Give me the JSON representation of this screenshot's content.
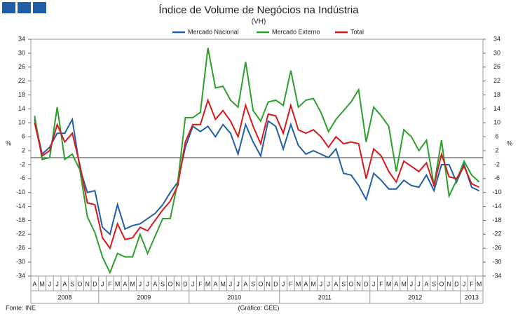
{
  "chart_data": {
    "type": "line",
    "title": "Índice de Volume de Negócios na Indústria",
    "subtitle": "(VH)",
    "ylabel": "%",
    "y2label": "%",
    "source": "Fonte: INE",
    "credit": "(Gráfico: GEE)",
    "categories": [
      "A",
      "M",
      "J",
      "J",
      "A",
      "S",
      "O",
      "N",
      "D",
      "J",
      "F",
      "M",
      "A",
      "M",
      "J",
      "J",
      "A",
      "S",
      "O",
      "N",
      "D",
      "J",
      "F",
      "M",
      "A",
      "M",
      "J",
      "J",
      "A",
      "S",
      "O",
      "N",
      "D",
      "J",
      "F",
      "M",
      "A",
      "M",
      "J",
      "J",
      "A",
      "S",
      "O",
      "N",
      "D",
      "J",
      "F",
      "M",
      "A",
      "M",
      "J",
      "J",
      "A",
      "S",
      "O",
      "N",
      "D",
      "J",
      "F",
      "M"
    ],
    "years": [
      "2008",
      "2009",
      "2010",
      "2011",
      "2012",
      "2013"
    ],
    "ylim": [
      -34,
      34
    ],
    "yticks": [
      -34,
      -30,
      -26,
      -22,
      -18,
      -14,
      -10,
      -6,
      -2,
      2,
      6,
      10,
      14,
      18,
      22,
      26,
      30,
      34
    ],
    "y2lim": [
      -34,
      34
    ],
    "y2ticks": [
      -34,
      -30,
      -26,
      -22,
      -18,
      -14,
      -10,
      -6,
      -2,
      2,
      6,
      10,
      14,
      18,
      22,
      26,
      30,
      34
    ],
    "grid": false,
    "legend": "top",
    "series": [
      {
        "name": "Mercado Nacional",
        "color": "#1f5fa8",
        "values": [
          11,
          1,
          3,
          7,
          7,
          11,
          -3,
          -10,
          -9.5,
          -20,
          -22,
          -13.5,
          -20.5,
          -19.5,
          -19,
          -17.5,
          -16,
          -13.5,
          -10,
          -7,
          3,
          9,
          7.5,
          9,
          6,
          9.5,
          7,
          1,
          9.5,
          4.5,
          0.5,
          10.5,
          9,
          2.5,
          9.5,
          3.5,
          1,
          2,
          1,
          0,
          2.5,
          -4.5,
          -5,
          -8,
          -12,
          -4.5,
          -6.5,
          -9,
          -9,
          -6.5,
          -8,
          -8.5,
          -5,
          -9.5,
          -2,
          -2,
          -7,
          -2,
          -8.5,
          -9.5
        ]
      },
      {
        "name": "Mercado Externo",
        "color": "#2ca02c",
        "values": [
          12,
          -0.5,
          0,
          14.5,
          -0.5,
          1,
          -3.5,
          -17,
          -21.5,
          -28.5,
          -33,
          -27.5,
          -28.5,
          -28.5,
          -22,
          -27.5,
          -22.5,
          -17.5,
          -17.5,
          -7,
          11.5,
          11.5,
          13,
          31.5,
          20,
          20.5,
          16.5,
          14.5,
          27.5,
          13.5,
          10.5,
          16,
          16.5,
          15,
          25,
          14.5,
          16.5,
          17,
          13,
          7.5,
          11,
          13.5,
          16,
          19.5,
          4.5,
          14.5,
          12,
          9,
          -4,
          8,
          6,
          2,
          5,
          -8,
          5,
          -11,
          -6.5,
          -1,
          -5,
          -7
        ]
      },
      {
        "name": "Total",
        "color": "#d7191c",
        "values": [
          10,
          0.5,
          2,
          9.5,
          4.5,
          7,
          -2,
          -13,
          -13.5,
          -23,
          -26,
          -19,
          -23.5,
          -23,
          -20,
          -21,
          -18,
          -15,
          -12.5,
          -8,
          4.5,
          9.5,
          9.5,
          16.5,
          11,
          13.5,
          10.5,
          6,
          15,
          9,
          4,
          12.5,
          12,
          7,
          15,
          8,
          7,
          8,
          6,
          3,
          6,
          4,
          4.5,
          4,
          -6,
          2.5,
          0.5,
          -4,
          -7,
          -1,
          -2.5,
          -4,
          -1.5,
          -8,
          1,
          -5.5,
          -6,
          -2.5,
          -7.5,
          -8.5
        ]
      }
    ]
  }
}
